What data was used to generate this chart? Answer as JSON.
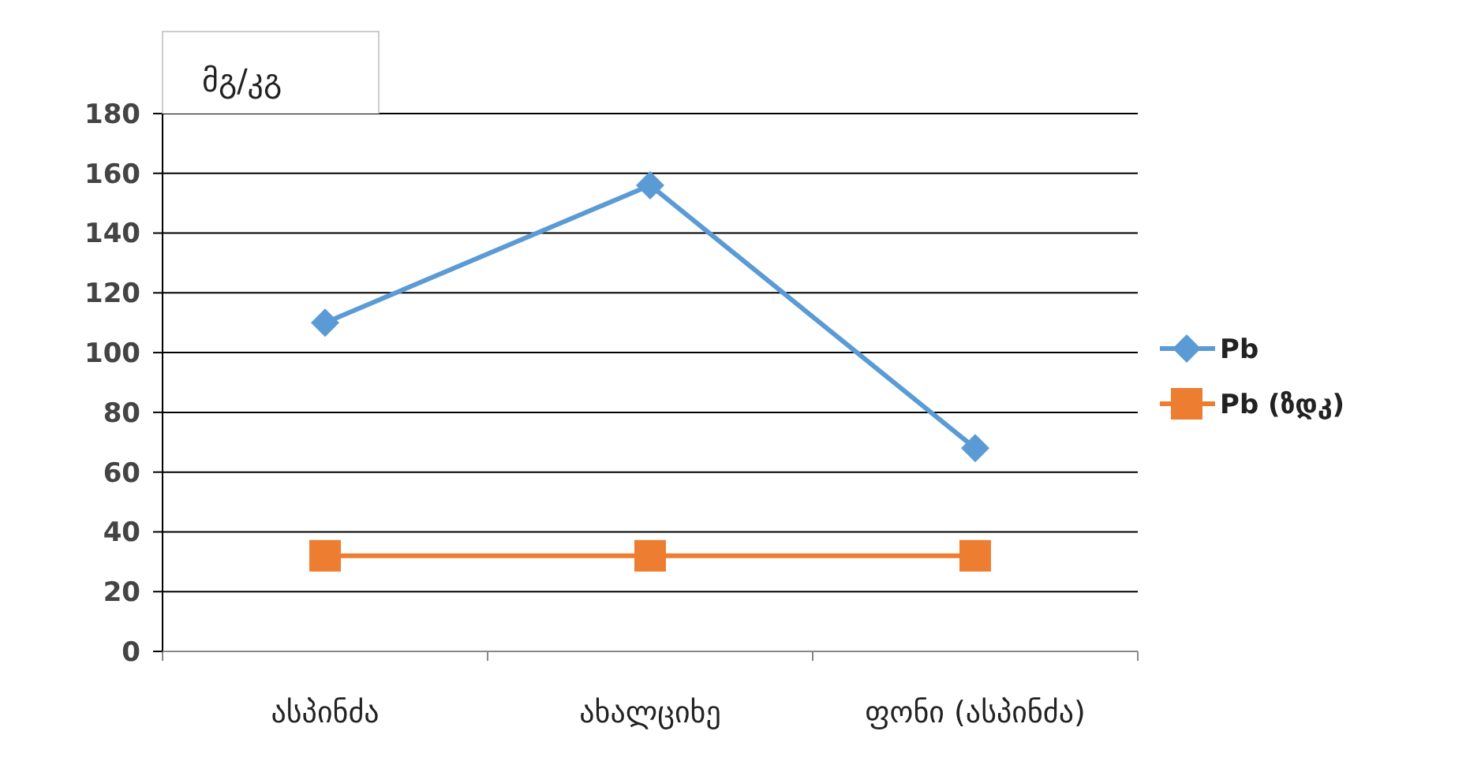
{
  "chart_data": {
    "type": "line",
    "ylabel": "მგ/კგ",
    "categories": [
      "ასპინძა",
      "ახალციხე",
      "ფონი (ასპინძა)"
    ],
    "series": [
      {
        "name": "Pb",
        "color": "#5b9bd5",
        "values": [
          110,
          156,
          68
        ],
        "marker": "diamond"
      },
      {
        "name": "Pb (ზდკ)",
        "color": "#ed7d31",
        "values": [
          32,
          32,
          32
        ],
        "marker": "square"
      }
    ],
    "ylim": [
      0,
      180
    ],
    "yticks": [
      0,
      20,
      40,
      60,
      80,
      100,
      120,
      140,
      160,
      180
    ],
    "grid": "y",
    "legend": "right"
  }
}
